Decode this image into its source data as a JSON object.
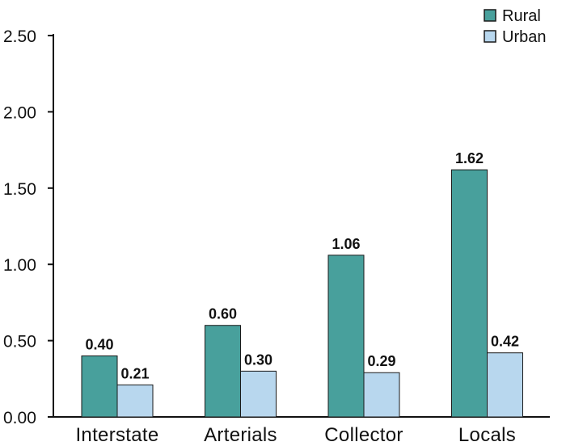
{
  "chart_data": {
    "type": "bar",
    "categories": [
      "Interstate",
      "Arterials",
      "Collector",
      "Locals"
    ],
    "series": [
      {
        "name": "Rural",
        "values": [
          0.4,
          0.6,
          1.06,
          1.62
        ],
        "color": "#48a09c"
      },
      {
        "name": "Urban",
        "values": [
          0.21,
          0.3,
          0.29,
          0.42
        ],
        "color": "#b8d7ee"
      }
    ],
    "value_labels": [
      [
        "0.40",
        "0.60",
        "1.06",
        "1.62"
      ],
      [
        "0.21",
        "0.30",
        "0.29",
        "0.42"
      ]
    ],
    "ylim": [
      0,
      2.5
    ],
    "yticks": [
      0.0,
      0.5,
      1.0,
      1.5,
      2.0,
      2.5
    ],
    "ytick_labels": [
      "0.00",
      "0.50",
      "1.00",
      "1.50",
      "2.00",
      "2.50"
    ],
    "grid": false,
    "legend_position": "top-right"
  }
}
